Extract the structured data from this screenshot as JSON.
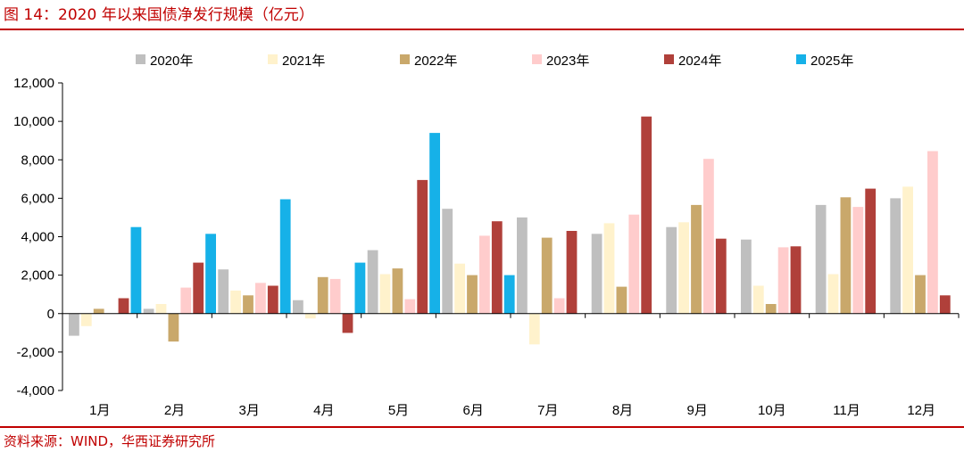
{
  "header": {
    "title": "图 14：2020 年以来国债净发行规模（亿元）"
  },
  "footer": {
    "source": "资料来源：WIND，华西证券研究所"
  },
  "chart_data": {
    "type": "bar",
    "title": "2020 年以来国债净发行规模（亿元）",
    "xlabel": "",
    "ylabel": "",
    "ylim": [
      -4000,
      12000
    ],
    "yticks": [
      12000,
      10000,
      8000,
      6000,
      4000,
      2000,
      0,
      -2000,
      -4000
    ],
    "ytick_labels": [
      "12,000",
      "10,000",
      "8,000",
      "6,000",
      "4,000",
      "2,000",
      "0",
      "-2,000",
      "-4,000"
    ],
    "grid": false,
    "legend": "top",
    "categories": [
      "1月",
      "2月",
      "3月",
      "4月",
      "5月",
      "6月",
      "7月",
      "8月",
      "9月",
      "10月",
      "11月",
      "12月"
    ],
    "series": [
      {
        "name": "2020年",
        "color": "#bfbfbf",
        "values": [
          -1150,
          250,
          2300,
          700,
          3300,
          5450,
          5000,
          4150,
          4500,
          3850,
          5650,
          6000
        ]
      },
      {
        "name": "2021年",
        "color": "#fff2cc",
        "values": [
          -650,
          500,
          1200,
          -250,
          2050,
          2600,
          -1600,
          4700,
          4750,
          1450,
          2050,
          6600
        ]
      },
      {
        "name": "2022年",
        "color": "#c9a86b",
        "values": [
          250,
          -1450,
          950,
          1900,
          2350,
          2000,
          3950,
          1400,
          5650,
          500,
          6050,
          2000
        ]
      },
      {
        "name": "2023年",
        "color": "#ffcccc",
        "values": [
          0,
          1350,
          1600,
          1800,
          750,
          4050,
          800,
          5150,
          8050,
          3450,
          5550,
          8450
        ]
      },
      {
        "name": "2024年",
        "color": "#b0403a",
        "values": [
          800,
          2650,
          1450,
          -1000,
          6950,
          4800,
          4300,
          10250,
          3900,
          3500,
          6500,
          950
        ]
      },
      {
        "name": "2025年",
        "color": "#16b1e8",
        "values": [
          4500,
          4150,
          5950,
          2650,
          9400,
          2000,
          null,
          null,
          null,
          null,
          null,
          null
        ]
      }
    ]
  }
}
